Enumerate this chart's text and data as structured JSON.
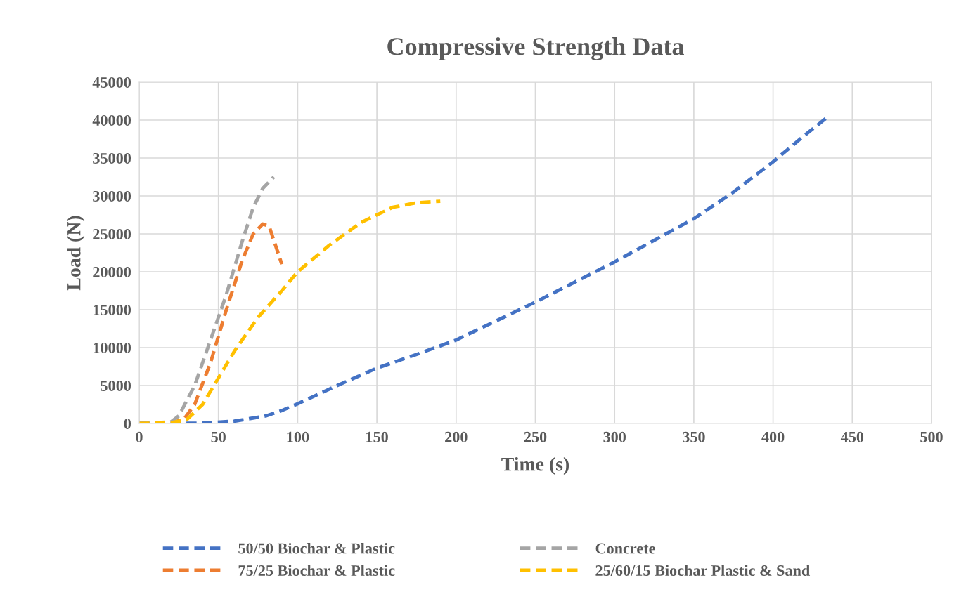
{
  "chart_data": {
    "type": "line",
    "title": "Compressive Strength Data",
    "xlabel": "Time (s)",
    "ylabel": "Load (N)",
    "xlim": [
      0,
      500
    ],
    "xticks": [
      0,
      50,
      100,
      150,
      200,
      250,
      300,
      350,
      400,
      450,
      500
    ],
    "ylim": [
      0,
      45000
    ],
    "yticks": [
      0,
      5000,
      10000,
      15000,
      20000,
      25000,
      30000,
      35000,
      40000,
      45000
    ],
    "grid": true,
    "legend": "bottom",
    "line_style": "dashed",
    "marker": "none",
    "series": [
      {
        "name": "50/50 Biochar & Plastic",
        "color": "#4472c4",
        "x": [
          0,
          20,
          40,
          60,
          80,
          90,
          100,
          125,
          150,
          175,
          200,
          250,
          300,
          350,
          375,
          400,
          420,
          435
        ],
        "values": [
          0,
          0,
          50,
          300,
          1000,
          1700,
          2600,
          5000,
          7300,
          9100,
          11000,
          16000,
          21300,
          27000,
          30500,
          34500,
          38000,
          40500
        ]
      },
      {
        "name": "75/25 Biochar & Plastic",
        "color": "#ed7d31",
        "x": [
          0,
          20,
          28,
          35,
          45,
          55,
          65,
          72,
          78,
          82,
          86,
          90
        ],
        "values": [
          0,
          100,
          500,
          2500,
          8000,
          15000,
          21500,
          25000,
          26300,
          26000,
          23500,
          21000
        ]
      },
      {
        "name": "Concrete",
        "color": "#a5a5a5",
        "x": [
          0,
          20,
          25,
          35,
          45,
          55,
          65,
          72,
          78,
          85
        ],
        "values": [
          0,
          200,
          1000,
          5000,
          11000,
          17000,
          24000,
          28500,
          31000,
          32500
        ]
      },
      {
        "name": "25/60/15 Biochar Plastic & Sand",
        "color": "#ffc000",
        "x": [
          0,
          20,
          30,
          40,
          50,
          60,
          75,
          90,
          100,
          120,
          140,
          160,
          175,
          190
        ],
        "values": [
          0,
          100,
          500,
          2500,
          6000,
          9500,
          14000,
          17500,
          20000,
          23500,
          26500,
          28500,
          29100,
          29300
        ]
      }
    ]
  }
}
